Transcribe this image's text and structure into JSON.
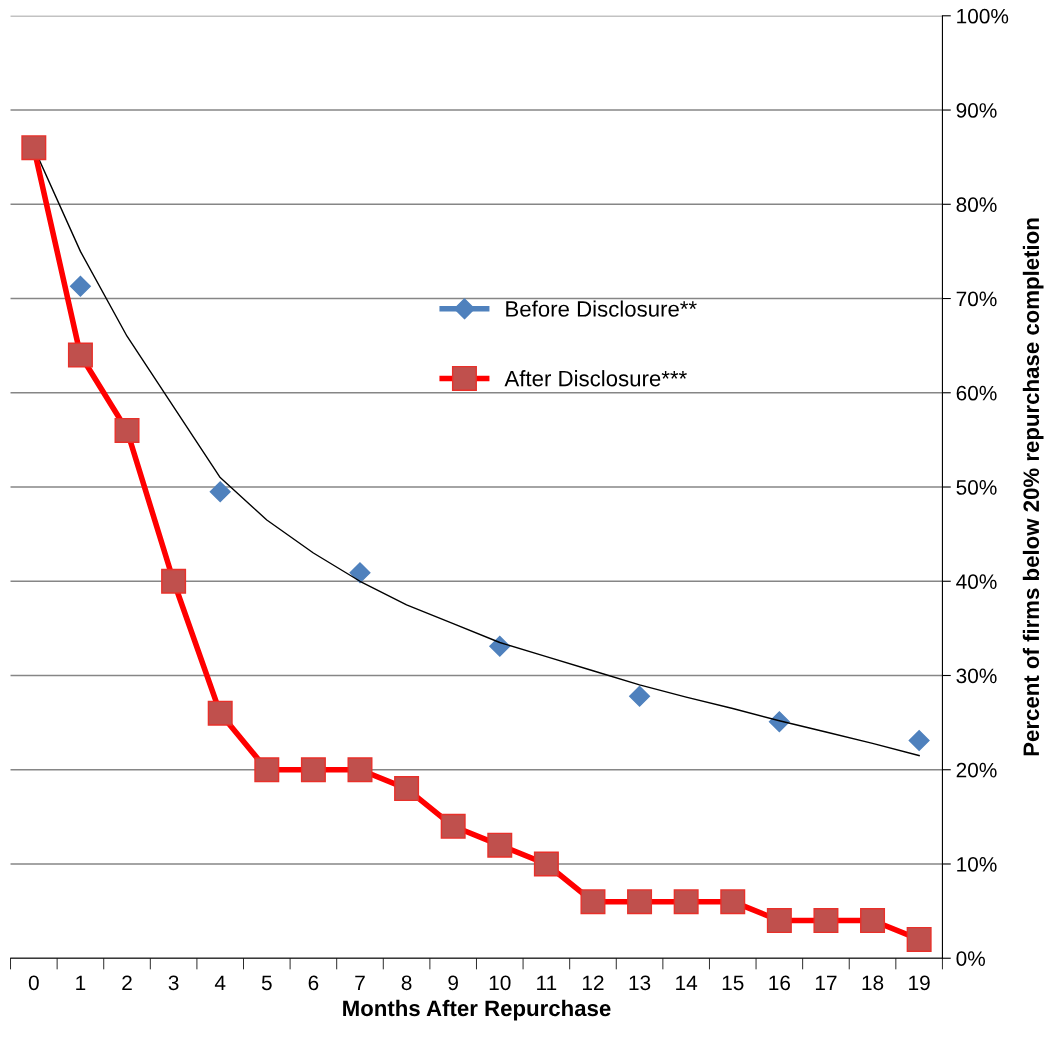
{
  "chart_data": {
    "type": "line",
    "xlabel": "Months After Repurchase",
    "y2label": "Percent of firms below 20% repurchase completion",
    "categories": [
      "0",
      "1",
      "2",
      "3",
      "4",
      "5",
      "6",
      "7",
      "8",
      "9",
      "10",
      "11",
      "12",
      "13",
      "14",
      "15",
      "16",
      "17",
      "18",
      "19"
    ],
    "series": [
      {
        "name": "Before Disclosure**",
        "type": "scatter",
        "color": "#4f81bd",
        "marker": "diamond",
        "axis": "y2",
        "values": [
          null,
          71.3,
          null,
          null,
          49.5,
          null,
          null,
          40.9,
          null,
          null,
          33.1,
          null,
          null,
          27.8,
          null,
          null,
          25.1,
          null,
          null,
          23.1
        ]
      },
      {
        "name": "After Disclosure***",
        "color": "#ff0000",
        "marker": "square",
        "axis": "y2",
        "values": [
          86,
          64,
          56,
          40,
          26,
          20,
          20,
          20,
          18,
          14,
          12,
          10,
          6,
          6,
          6,
          6,
          4,
          4,
          4,
          2
        ]
      },
      {
        "color": "#000000",
        "marker": "none",
        "axis": "y2",
        "values": [
          86,
          75,
          66,
          58.5,
          51,
          46.5,
          43,
          40,
          37.5,
          35.5,
          33.5,
          32,
          30.5,
          29,
          27.7,
          26.5,
          25.2,
          24,
          22.8,
          21.5
        ]
      }
    ],
    "y2lim": [
      0,
      100
    ],
    "y2ticks": [
      {
        "value": 0,
        "label": "0%"
      },
      {
        "value": 10,
        "label": "10%"
      },
      {
        "value": 20,
        "label": "20%"
      },
      {
        "value": 30,
        "label": "30%"
      },
      {
        "value": 40,
        "label": "40%"
      },
      {
        "value": 50,
        "label": "50%"
      },
      {
        "value": 60,
        "label": "60%"
      },
      {
        "value": 70,
        "label": "70%"
      },
      {
        "value": 80,
        "label": "80%"
      },
      {
        "value": 90,
        "label": "90%"
      },
      {
        "value": 100,
        "label": "100%"
      }
    ],
    "grid": "y",
    "legend": "center"
  }
}
